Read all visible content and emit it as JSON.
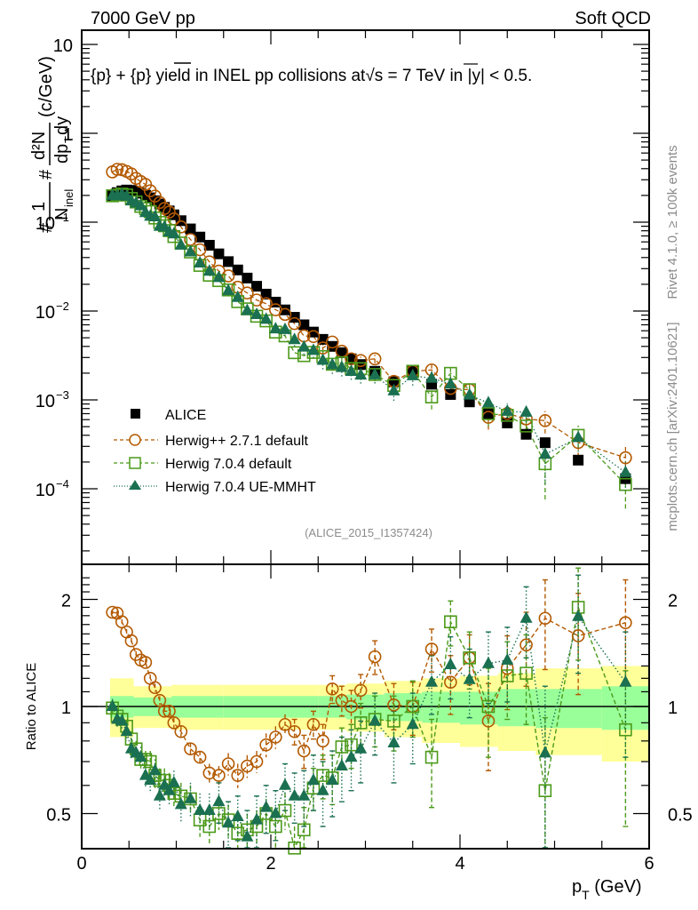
{
  "header": {
    "left": "7000 GeV pp",
    "right": "Soft QCD"
  },
  "side_labels": {
    "rivet": "Rivet 4.1.0, ≥ 100k events",
    "mcplots": "mcplots.cern.ch [arXiv:2401.10621]"
  },
  "analysis_id": "(ALICE_2015_I1357424)",
  "colors": {
    "alice": "#000000",
    "herwigpp": "#b35900",
    "herwig7_default": "#4c9a1a",
    "herwig7_uemmht": "#1a7050",
    "band_inner": "#99ff99",
    "band_outer": "#ffff99"
  },
  "chart_data": [
    {
      "type": "scatter",
      "panel": "main",
      "title": "{p} + {̅p} yield in INEL pp collisions at√s =  7 TeV in |y| < 0.5.",
      "title_parts": {
        "a": "{p} + ",
        "b": "{p}",
        "c": " yield in INEL pp collisions at",
        "d": "s =  7 TeV in |y| < 0.5."
      },
      "ylabel_parts": {
        "hash1": "#",
        "one": "1",
        "nnel": "N",
        "inel_sub": "inel",
        "hash2": "#",
        "num": "d²N",
        "den": "dp",
        "den_sub": "T",
        "den_tail": "dy",
        "unit": "(c/GeV)"
      },
      "yscale": "log",
      "ylim": [
        2e-05,
        14
      ],
      "xlim": [
        0,
        6.1
      ],
      "yticks": [
        {
          "v": 10,
          "label": "10",
          "exp": ""
        },
        {
          "v": 1,
          "label": "1",
          "exp": ""
        },
        {
          "v": 0.1,
          "label": "10",
          "exp": "−1"
        },
        {
          "v": 0.01,
          "label": "10",
          "exp": "−2"
        },
        {
          "v": 0.001,
          "label": "10",
          "exp": "−3"
        },
        {
          "v": 0.0001,
          "label": "10",
          "exp": "−4"
        }
      ],
      "legend": {
        "placement": "bottom-left",
        "entries": [
          {
            "key": "alice",
            "label": "ALICE"
          },
          {
            "key": "herwigpp",
            "label": "Herwig++ 2.7.1 default"
          },
          {
            "key": "herwig7_default",
            "label": "Herwig 7.0.4 default"
          },
          {
            "key": "herwig7_uemmht",
            "label": "Herwig 7.0.4 UE-MMHT"
          }
        ]
      },
      "x": [
        0.325,
        0.375,
        0.425,
        0.475,
        0.525,
        0.575,
        0.625,
        0.675,
        0.725,
        0.775,
        0.825,
        0.875,
        0.925,
        0.975,
        1.05,
        1.15,
        1.25,
        1.35,
        1.45,
        1.55,
        1.65,
        1.75,
        1.85,
        1.95,
        2.05,
        2.15,
        2.25,
        2.35,
        2.45,
        2.55,
        2.65,
        2.75,
        2.85,
        2.95,
        3.1,
        3.3,
        3.5,
        3.7,
        3.9,
        4.1,
        4.3,
        4.5,
        4.7,
        4.9,
        5.25,
        5.75
      ],
      "series": [
        {
          "name": "ALICE",
          "key": "alice",
          "marker": "square-filled",
          "values": [
            0.2,
            0.215,
            0.225,
            0.23,
            0.228,
            0.222,
            0.212,
            0.2,
            0.188,
            0.174,
            0.16,
            0.147,
            0.134,
            0.121,
            0.104,
            0.084,
            0.068,
            0.055,
            0.044,
            0.036,
            0.029,
            0.0235,
            0.019,
            0.0155,
            0.0126,
            0.0103,
            0.0085,
            0.007,
            0.0058,
            0.0048,
            0.004,
            0.0034,
            0.0029,
            0.0025,
            0.0021,
            0.0016,
            0.0021,
            0.0015,
            0.00115,
            0.00095,
            0.0007,
            0.00055,
            0.00041,
            0.00033,
            0.00021,
            0.00013
          ]
        },
        {
          "name": "Herwig++ 2.7.1 default",
          "key": "herwigpp",
          "marker": "circle-open",
          "line": "dashed",
          "ratio": [
            1.84,
            1.83,
            1.73,
            1.62,
            1.53,
            1.4,
            1.35,
            1.33,
            1.2,
            1.13,
            1.04,
            0.97,
            0.97,
            0.9,
            0.85,
            0.76,
            0.72,
            0.65,
            0.64,
            0.69,
            0.64,
            0.68,
            0.7,
            0.78,
            0.82,
            0.89,
            0.85,
            0.75,
            0.89,
            0.8,
            1.12,
            1.04,
            1.0,
            1.11,
            1.38,
            1.01,
            1.0,
            1.45,
            1.17,
            1.37,
            0.91,
            1.28,
            1.49,
            1.77,
            1.58,
            1.72
          ],
          "err": [
            0.03,
            0.03,
            0.03,
            0.03,
            0.03,
            0.03,
            0.03,
            0.03,
            0.03,
            0.03,
            0.03,
            0.03,
            0.03,
            0.03,
            0.03,
            0.03,
            0.03,
            0.04,
            0.04,
            0.05,
            0.05,
            0.05,
            0.05,
            0.06,
            0.06,
            0.06,
            0.07,
            0.08,
            0.08,
            0.09,
            0.1,
            0.1,
            0.11,
            0.12,
            0.15,
            0.15,
            0.17,
            0.2,
            0.22,
            0.22,
            0.25,
            0.3,
            0.35,
            0.5,
            0.5,
            0.55
          ]
        },
        {
          "name": "Herwig 7.0.4 default",
          "key": "herwig7_default",
          "marker": "square-open",
          "line": "dashed",
          "ratio": [
            0.99,
            0.94,
            0.92,
            0.88,
            0.81,
            0.76,
            0.71,
            0.71,
            0.7,
            0.64,
            0.62,
            0.62,
            0.6,
            0.57,
            0.56,
            0.55,
            0.48,
            0.46,
            0.5,
            0.48,
            0.44,
            0.45,
            0.46,
            0.5,
            0.46,
            0.51,
            0.4,
            0.45,
            0.59,
            0.64,
            0.63,
            0.77,
            0.78,
            0.9,
            0.92,
            0.91,
            1.0,
            0.72,
            1.73,
            1.37,
            1.0,
            1.22,
            1.24,
            0.58,
            1.9,
            0.86
          ],
          "err": [
            0.04,
            0.04,
            0.04,
            0.04,
            0.04,
            0.04,
            0.04,
            0.04,
            0.05,
            0.05,
            0.05,
            0.05,
            0.05,
            0.05,
            0.05,
            0.05,
            0.05,
            0.05,
            0.05,
            0.05,
            0.05,
            0.05,
            0.05,
            0.05,
            0.06,
            0.06,
            0.06,
            0.07,
            0.08,
            0.09,
            0.1,
            0.1,
            0.11,
            0.12,
            0.15,
            0.16,
            0.18,
            0.2,
            0.25,
            0.25,
            0.28,
            0.3,
            0.35,
            0.35,
            0.55,
            0.4
          ]
        },
        {
          "name": "Herwig 7.0.4 UE-MMHT",
          "key": "herwig7_uemmht",
          "marker": "triangle-filled",
          "line": "dotted",
          "ratio": [
            1.0,
            0.92,
            0.91,
            0.85,
            0.76,
            0.74,
            0.72,
            0.64,
            0.62,
            0.66,
            0.56,
            0.6,
            0.58,
            0.61,
            0.53,
            0.55,
            0.51,
            0.51,
            0.54,
            0.47,
            0.49,
            0.43,
            0.48,
            0.52,
            0.5,
            0.6,
            0.56,
            0.56,
            0.62,
            0.58,
            0.62,
            0.68,
            0.72,
            0.76,
            0.91,
            0.79,
            0.89,
            1.17,
            1.31,
            1.19,
            1.32,
            1.35,
            1.77,
            0.74,
            1.79,
            1.17
          ],
          "err": [
            0.05,
            0.05,
            0.05,
            0.05,
            0.05,
            0.05,
            0.05,
            0.05,
            0.05,
            0.05,
            0.05,
            0.05,
            0.05,
            0.05,
            0.06,
            0.06,
            0.06,
            0.06,
            0.07,
            0.07,
            0.07,
            0.08,
            0.08,
            0.08,
            0.08,
            0.09,
            0.09,
            0.1,
            0.11,
            0.12,
            0.13,
            0.14,
            0.14,
            0.15,
            0.18,
            0.18,
            0.2,
            0.22,
            0.26,
            0.26,
            0.3,
            0.32,
            0.4,
            0.4,
            0.55,
            0.45
          ]
        }
      ]
    },
    {
      "type": "scatter",
      "panel": "ratio",
      "ylabel": "Ratio to ALICE",
      "xlabel": "p",
      "xlabel_sub": "T",
      "xlabel_tail": " (GeV)",
      "yscale": "log",
      "ylim": [
        0.42,
        2.35
      ],
      "xlim": [
        0,
        6.1
      ],
      "xticks": [
        {
          "v": 0,
          "label": "0"
        },
        {
          "v": 2,
          "label": "2"
        },
        {
          "v": 4,
          "label": "4"
        },
        {
          "v": 6,
          "label": "6"
        }
      ],
      "yticks": [
        {
          "v": 2,
          "label": "2"
        },
        {
          "v": 1,
          "label": "1"
        },
        {
          "v": 0.5,
          "label": "0.5"
        }
      ],
      "reference_line": 1,
      "bands": {
        "x_edges": [
          0.3,
          0.55,
          0.95,
          1.5,
          2.0,
          2.5,
          2.8,
          3.2,
          3.6,
          4.0,
          4.4,
          4.8,
          5.5,
          6.0
        ],
        "inner_up": [
          1.07,
          1.06,
          1.07,
          1.07,
          1.07,
          1.07,
          1.08,
          1.09,
          1.1,
          1.1,
          1.12,
          1.12,
          1.14,
          1.23
        ],
        "inner_dn": [
          0.93,
          0.94,
          0.93,
          0.93,
          0.93,
          0.93,
          0.92,
          0.91,
          0.9,
          0.89,
          0.88,
          0.87,
          0.86,
          0.81
        ],
        "outer_up": [
          1.2,
          1.14,
          1.15,
          1.15,
          1.15,
          1.15,
          1.16,
          1.18,
          1.2,
          1.22,
          1.24,
          1.28,
          1.3,
          1.52
        ],
        "outer_dn": [
          0.82,
          0.87,
          0.86,
          0.86,
          0.86,
          0.86,
          0.85,
          0.82,
          0.79,
          0.77,
          0.75,
          0.73,
          0.7,
          0.59
        ]
      }
    }
  ]
}
